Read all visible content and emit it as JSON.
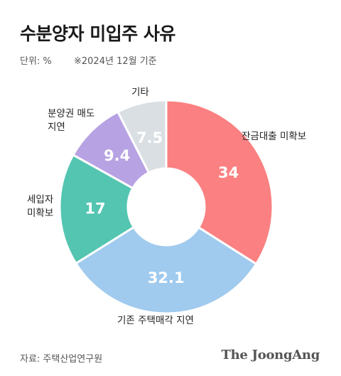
{
  "title": "수분양자 미입주 사유",
  "unit_label": "단위: %",
  "date_note": "※2024년 12월 기준",
  "source": "자료: 주택산업연구원",
  "brand": "The JoongAng",
  "chart_data": {
    "type": "pie",
    "style": "donut",
    "title": "수분양자 미입주 사유",
    "unit": "%",
    "slices": [
      {
        "label": "잔금대출 미확보",
        "value": 34,
        "color": "#fb8081"
      },
      {
        "label": "기존 주택매각 지연",
        "value": 32.1,
        "color": "#a0caee"
      },
      {
        "label": "세입자\n미확보",
        "value": 17,
        "color": "#53c5b1"
      },
      {
        "label": "분양권 매도\n지연",
        "value": 9.4,
        "color": "#b7a2e3"
      },
      {
        "label": "기타",
        "value": 7.5,
        "color": "#d9dfe3"
      }
    ]
  }
}
